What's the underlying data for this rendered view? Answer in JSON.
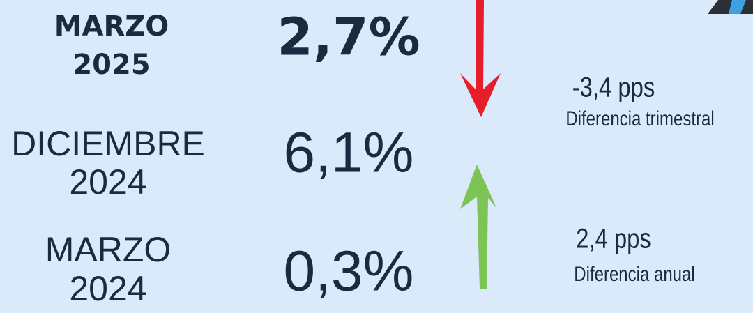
{
  "rows": [
    {
      "period": [
        "MARZO",
        "2025"
      ],
      "value": "2,7%"
    },
    {
      "period": [
        "DICIEMBRE",
        "2024"
      ],
      "value": "6,1%"
    },
    {
      "period": [
        "MARZO",
        "2024"
      ],
      "value": "0,3%"
    }
  ],
  "differences": [
    {
      "value": "-3,4 pps",
      "label": "Diferencia trimestral"
    },
    {
      "value": "2,4 pps",
      "label": "Diferencia anual"
    }
  ]
}
